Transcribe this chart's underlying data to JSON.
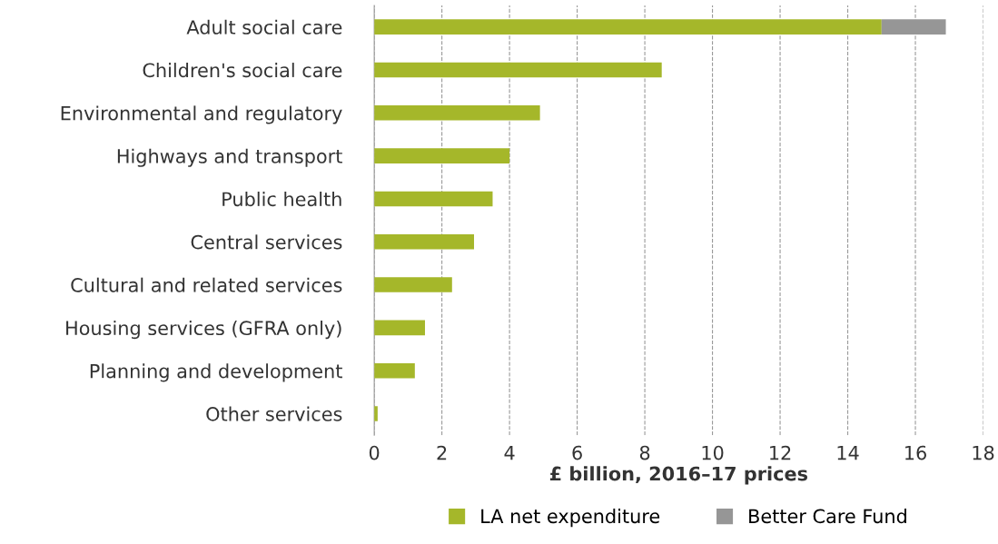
{
  "chart_data": {
    "type": "bar",
    "orientation": "horizontal",
    "stacked": true,
    "xlabel": "£ billion, 2016–17 prices",
    "categories": [
      "Adult social care",
      "Children's social care",
      "Environmental and regulatory",
      "Highways and transport",
      "Public health",
      "Central services",
      "Cultural and related services",
      "Housing services (GFRA only)",
      "Planning and development",
      "Other services"
    ],
    "series": [
      {
        "name": "LA net expenditure",
        "color": "#a5b72a",
        "values": [
          15.0,
          8.5,
          4.9,
          4.0,
          3.5,
          2.95,
          2.3,
          1.5,
          1.2,
          0.1
        ]
      },
      {
        "name": "Better Care Fund",
        "color": "#969696",
        "values": [
          1.9,
          null,
          null,
          null,
          null,
          null,
          null,
          null,
          null,
          null
        ]
      }
    ],
    "xlim": [
      0,
      18
    ],
    "xticks": [
      0,
      2,
      4,
      6,
      8,
      10,
      12,
      14,
      16,
      18
    ],
    "grid": "x",
    "legend": "bottom"
  }
}
